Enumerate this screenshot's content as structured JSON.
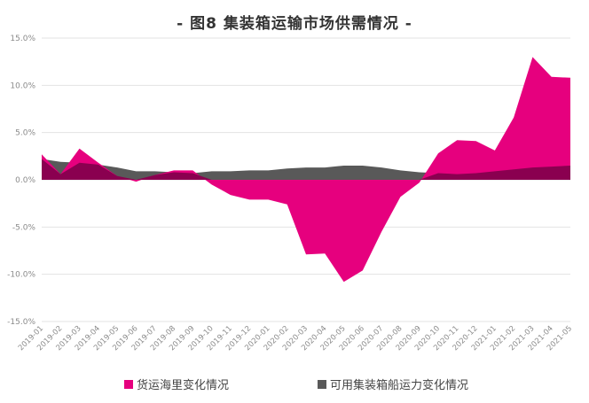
{
  "title": "- 图8  集装箱运输市场供需情况 -",
  "chart_data": {
    "type": "area",
    "title": "图8 集装箱运输市场供需情况",
    "xlabel": "",
    "ylabel": "",
    "ylim": [
      -15,
      15
    ],
    "yticks": [
      "15.0%",
      "10.0%",
      "5.0%",
      "0.0%",
      "-5.0%",
      "-10.0%",
      "-15.0%"
    ],
    "grid": true,
    "legend_position": "bottom",
    "categories": [
      "2019-01",
      "2019-02",
      "2019-03",
      "2019-04",
      "2019-05",
      "2019-06",
      "2019-07",
      "2019-08",
      "2019-09",
      "2019-10",
      "2019-11",
      "2019-12",
      "2020-01",
      "2020-02",
      "2020-03",
      "2020-04",
      "2020-05",
      "2020-06",
      "2020-07",
      "2020-08",
      "2020-09",
      "2020-10",
      "2020-11",
      "2020-12",
      "2021-01",
      "2021-02",
      "2021-03",
      "2021-04",
      "2021-05"
    ],
    "series": [
      {
        "name": "货运海里变化情况",
        "color": "#e6007e",
        "values": [
          2.7,
          0.6,
          3.3,
          1.8,
          0.4,
          -0.2,
          0.5,
          1.0,
          1.0,
          -0.5,
          -1.6,
          -2.1,
          -2.1,
          -2.6,
          -7.9,
          -7.8,
          -10.8,
          -9.6,
          -5.5,
          -1.8,
          -0.3,
          2.8,
          4.2,
          4.1,
          3.1,
          6.6,
          13.0,
          10.9,
          10.8
        ]
      },
      {
        "name": "可用集装箱船运力变化情况",
        "color": "#595959",
        "values": [
          2.2,
          1.9,
          1.8,
          1.6,
          1.3,
          0.9,
          0.9,
          0.8,
          0.7,
          0.9,
          0.9,
          1.0,
          1.0,
          1.2,
          1.3,
          1.3,
          1.5,
          1.5,
          1.3,
          1.0,
          0.8,
          0.7,
          0.6,
          0.7,
          0.9,
          1.1,
          1.3,
          1.4,
          1.5
        ]
      }
    ]
  },
  "legend": {
    "items": [
      {
        "label": "货运海里变化情况",
        "color": "#e6007e"
      },
      {
        "label": "可用集装箱船运力变化情况",
        "color": "#595959"
      }
    ]
  }
}
